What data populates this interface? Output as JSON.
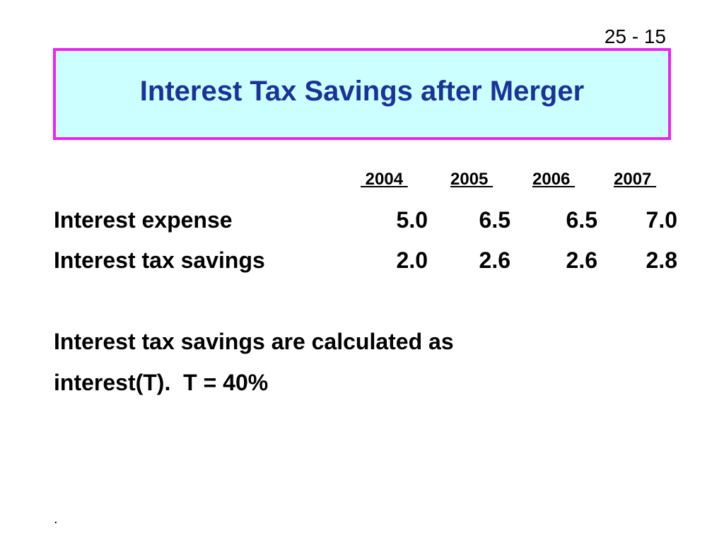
{
  "slide_number": "25 - 15",
  "title": "Interest Tax Savings after Merger",
  "table": {
    "years": [
      " 2004 ",
      "2005 ",
      "2006 ",
      "2007 "
    ],
    "rows": [
      {
        "label": "Interest expense",
        "values": [
          "5.0",
          "6.5",
          "6.5",
          "7.0"
        ]
      },
      {
        "label": "Interest tax savings",
        "values": [
          "2.0",
          "2.6",
          "2.6",
          "2.8"
        ]
      }
    ]
  },
  "note": {
    "line1": "Interest tax savings are calculated as",
    "line2": "interest(T).  T = 40%"
  },
  "footer": "."
}
